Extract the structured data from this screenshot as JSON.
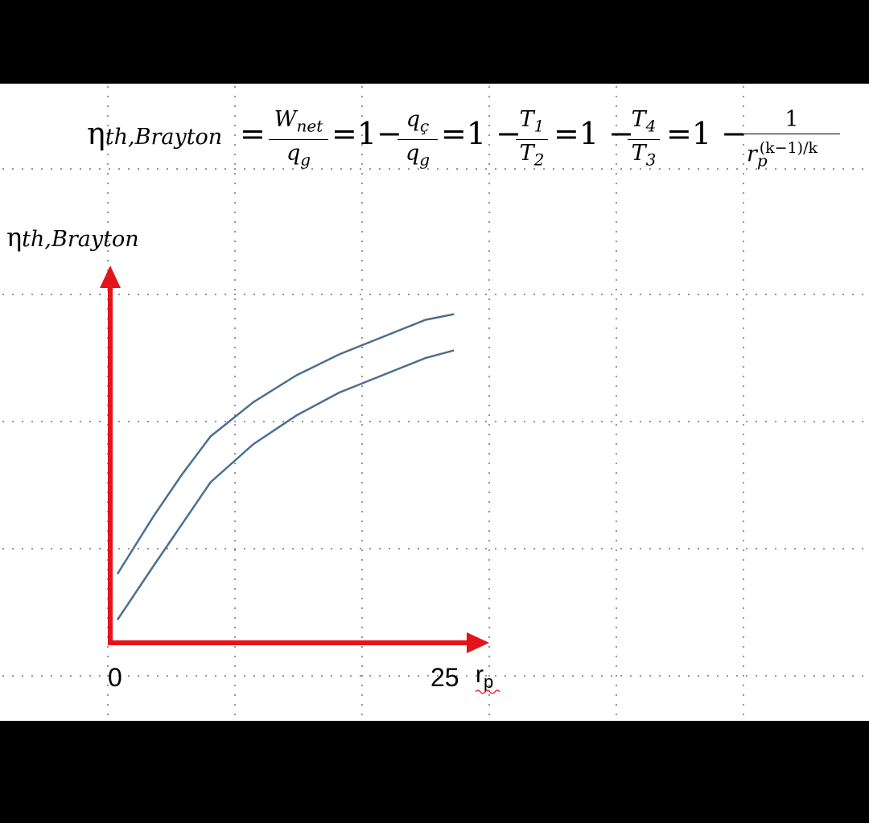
{
  "equation": {
    "lhs_symbol": "η",
    "lhs_sub": "th,Brayton",
    "eq1": "=",
    "f1_num": "W",
    "f1_num_sub": "net",
    "f1_den": "q",
    "f1_den_sub": "g",
    "eq2": "=1−",
    "f2_num": "q",
    "f2_num_sub": "ç",
    "f2_den": "q",
    "f2_den_sub": "g",
    "eq3": "=1 −",
    "f3_num": "T",
    "f3_num_sub": "1",
    "f3_den": "T",
    "f3_den_sub": "2",
    "eq4": "=1 −",
    "f4_num": "T",
    "f4_num_sub": "4",
    "f4_den": "T",
    "f4_den_sub": "3",
    "eq5": "=1 −",
    "f5_num": "1",
    "f5_den": "r",
    "f5_den_sub": "p",
    "f5_den_sup": "(k−1)/k"
  },
  "axis": {
    "y_symbol": "η",
    "y_sub": "th,Brayton",
    "x_min_label": "0",
    "x_max_label": "25",
    "x_var": "r",
    "x_var_sub": "p",
    "color": "#e3151b"
  },
  "curves": {
    "color": "#4a6f91",
    "series": [
      {
        "x": [
          0.5,
          3,
          5,
          7,
          10,
          13,
          16,
          19,
          22,
          24
        ],
        "y": [
          0.18,
          0.33,
          0.44,
          0.54,
          0.63,
          0.7,
          0.755,
          0.8,
          0.845,
          0.86
        ]
      },
      {
        "x": [
          0.5,
          3,
          5,
          7,
          10,
          13,
          16,
          19,
          22,
          24
        ],
        "y": [
          0.06,
          0.2,
          0.31,
          0.42,
          0.52,
          0.595,
          0.655,
          0.7,
          0.745,
          0.765
        ]
      }
    ]
  }
}
